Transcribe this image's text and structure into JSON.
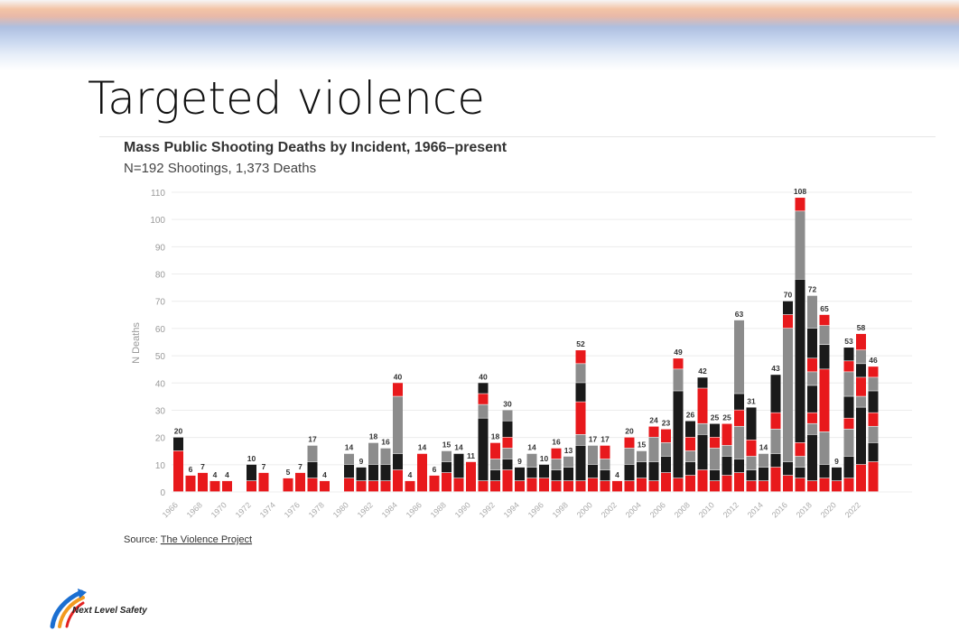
{
  "slide": {
    "title": "Targeted violence"
  },
  "logo": {
    "text": "Next Level Safety"
  },
  "chart_data": {
    "type": "bar",
    "stacked": true,
    "title": "Mass Public Shooting Deaths by Incident, 1966–present",
    "subtitle": "N=192 Shootings, 1,373 Deaths",
    "ylabel": "N Deaths",
    "ylim": [
      0,
      110
    ],
    "yticks": [
      0,
      10,
      20,
      30,
      40,
      50,
      60,
      70,
      80,
      90,
      100,
      110
    ],
    "source_prefix": "Source: ",
    "source_link": "The Violence Project",
    "grid": true,
    "colors": {
      "red": "#e8191c",
      "black": "#1a1a1a",
      "gray": "#8c8c8c"
    },
    "categories": [
      1966,
      1967,
      1968,
      1969,
      1970,
      1971,
      1972,
      1973,
      1974,
      1975,
      1976,
      1977,
      1978,
      1979,
      1980,
      1981,
      1982,
      1983,
      1984,
      1985,
      1986,
      1987,
      1988,
      1989,
      1990,
      1991,
      1992,
      1993,
      1994,
      1995,
      1996,
      1997,
      1998,
      1999,
      2000,
      2001,
      2002,
      2003,
      2004,
      2005,
      2006,
      2007,
      2008,
      2009,
      2010,
      2011,
      2012,
      2013,
      2014,
      2015,
      2016,
      2017,
      2018,
      2019,
      2020,
      2021,
      2022,
      2023
    ],
    "xtick_labels": [
      1966,
      1968,
      1970,
      1972,
      1974,
      1976,
      1978,
      1980,
      1982,
      1984,
      1986,
      1988,
      1990,
      1992,
      1994,
      1996,
      1998,
      2000,
      2002,
      2004,
      2006,
      2008,
      2010,
      2012,
      2014,
      2016,
      2018,
      2020,
      2022
    ],
    "totals": [
      20,
      6,
      7,
      4,
      4,
      null,
      10,
      7,
      null,
      5,
      7,
      17,
      4,
      null,
      14,
      9,
      18,
      16,
      40,
      4,
      14,
      6,
      15,
      14,
      11,
      40,
      18,
      30,
      9,
      14,
      10,
      16,
      13,
      52,
      17,
      17,
      4,
      20,
      15,
      24,
      23,
      49,
      26,
      42,
      25,
      25,
      63,
      31,
      14,
      43,
      70,
      108,
      72,
      65,
      9,
      53,
      58,
      46
    ],
    "segments": [
      [
        [
          "red",
          15
        ],
        [
          "black",
          5
        ]
      ],
      [
        [
          "red",
          6
        ]
      ],
      [
        [
          "red",
          7
        ]
      ],
      [
        [
          "red",
          4
        ]
      ],
      [
        [
          "red",
          4
        ]
      ],
      [],
      [
        [
          "red",
          4
        ],
        [
          "black",
          6
        ]
      ],
      [
        [
          "red",
          7
        ]
      ],
      [],
      [
        [
          "red",
          5
        ]
      ],
      [
        [
          "red",
          7
        ]
      ],
      [
        [
          "red",
          5
        ],
        [
          "black",
          6
        ],
        [
          "gray",
          6
        ]
      ],
      [
        [
          "red",
          4
        ]
      ],
      [],
      [
        [
          "red",
          5
        ],
        [
          "black",
          5
        ],
        [
          "gray",
          4
        ]
      ],
      [
        [
          "red",
          4
        ],
        [
          "black",
          5
        ]
      ],
      [
        [
          "red",
          4
        ],
        [
          "black",
          6
        ],
        [
          "gray",
          8
        ]
      ],
      [
        [
          "red",
          4
        ],
        [
          "black",
          6
        ],
        [
          "gray",
          6
        ]
      ],
      [
        [
          "red",
          8
        ],
        [
          "black",
          6
        ],
        [
          "gray",
          21
        ],
        [
          "red",
          5
        ]
      ],
      [
        [
          "red",
          4
        ]
      ],
      [
        [
          "red",
          14
        ]
      ],
      [
        [
          "red",
          6
        ]
      ],
      [
        [
          "red",
          7
        ],
        [
          "black",
          4
        ],
        [
          "gray",
          4
        ]
      ],
      [
        [
          "red",
          5
        ],
        [
          "black",
          9
        ]
      ],
      [
        [
          "red",
          11
        ]
      ],
      [
        [
          "red",
          4
        ],
        [
          "black",
          23
        ],
        [
          "gray",
          5
        ],
        [
          "red",
          4
        ],
        [
          "black",
          4
        ]
      ],
      [
        [
          "red",
          4
        ],
        [
          "black",
          4
        ],
        [
          "gray",
          4
        ],
        [
          "red",
          6
        ]
      ],
      [
        [
          "red",
          8
        ],
        [
          "black",
          4
        ],
        [
          "gray",
          4
        ],
        [
          "red",
          4
        ],
        [
          "black",
          6
        ],
        [
          "gray",
          4
        ]
      ],
      [
        [
          "red",
          4
        ],
        [
          "black",
          5
        ]
      ],
      [
        [
          "red",
          5
        ],
        [
          "black",
          4
        ],
        [
          "gray",
          5
        ]
      ],
      [
        [
          "red",
          5
        ],
        [
          "black",
          5
        ]
      ],
      [
        [
          "red",
          4
        ],
        [
          "black",
          4
        ],
        [
          "gray",
          4
        ],
        [
          "red",
          4
        ]
      ],
      [
        [
          "red",
          4
        ],
        [
          "black",
          5
        ],
        [
          "gray",
          4
        ]
      ],
      [
        [
          "red",
          4
        ],
        [
          "black",
          13
        ],
        [
          "gray",
          4
        ],
        [
          "red",
          12
        ],
        [
          "black",
          7
        ],
        [
          "gray",
          7
        ],
        [
          "red",
          5
        ]
      ],
      [
        [
          "red",
          5
        ],
        [
          "black",
          5
        ],
        [
          "gray",
          7
        ]
      ],
      [
        [
          "red",
          4
        ],
        [
          "black",
          4
        ],
        [
          "gray",
          4
        ],
        [
          "red",
          5
        ]
      ],
      [
        [
          "red",
          4
        ]
      ],
      [
        [
          "red",
          4
        ],
        [
          "black",
          6
        ],
        [
          "gray",
          6
        ],
        [
          "red",
          4
        ]
      ],
      [
        [
          "red",
          5
        ],
        [
          "black",
          6
        ],
        [
          "gray",
          4
        ]
      ],
      [
        [
          "red",
          4
        ],
        [
          "black",
          7
        ],
        [
          "gray",
          9
        ],
        [
          "red",
          4
        ]
      ],
      [
        [
          "red",
          7
        ],
        [
          "black",
          6
        ],
        [
          "gray",
          5
        ],
        [
          "red",
          5
        ]
      ],
      [
        [
          "red",
          5
        ],
        [
          "black",
          32
        ],
        [
          "gray",
          8
        ],
        [
          "red",
          4
        ]
      ],
      [
        [
          "red",
          6
        ],
        [
          "black",
          5
        ],
        [
          "gray",
          4
        ],
        [
          "red",
          5
        ],
        [
          "black",
          6
        ]
      ],
      [
        [
          "red",
          8
        ],
        [
          "black",
          13
        ],
        [
          "gray",
          4
        ],
        [
          "red",
          13
        ],
        [
          "black",
          4
        ]
      ],
      [
        [
          "red",
          4
        ],
        [
          "black",
          4
        ],
        [
          "gray",
          8
        ],
        [
          "red",
          4
        ],
        [
          "black",
          5
        ]
      ],
      [
        [
          "red",
          6
        ],
        [
          "black",
          7
        ],
        [
          "gray",
          4
        ],
        [
          "red",
          8
        ]
      ],
      [
        [
          "red",
          7
        ],
        [
          "black",
          5
        ],
        [
          "gray",
          12
        ],
        [
          "red",
          6
        ],
        [
          "black",
          6
        ],
        [
          "gray",
          27
        ]
      ],
      [
        [
          "red",
          4
        ],
        [
          "black",
          4
        ],
        [
          "gray",
          5
        ],
        [
          "red",
          6
        ],
        [
          "black",
          12
        ]
      ],
      [
        [
          "red",
          4
        ],
        [
          "black",
          5
        ],
        [
          "gray",
          5
        ]
      ],
      [
        [
          "red",
          9
        ],
        [
          "black",
          5
        ],
        [
          "gray",
          9
        ],
        [
          "red",
          6
        ],
        [
          "black",
          14
        ]
      ],
      [
        [
          "red",
          6
        ],
        [
          "black",
          5
        ],
        [
          "gray",
          49
        ],
        [
          "red",
          5
        ],
        [
          "black",
          5
        ]
      ],
      [
        [
          "red",
          5
        ],
        [
          "black",
          4
        ],
        [
          "gray",
          4
        ],
        [
          "red",
          5
        ],
        [
          "black",
          60
        ],
        [
          "gray",
          25
        ],
        [
          "red",
          5
        ]
      ],
      [
        [
          "red",
          4
        ],
        [
          "black",
          17
        ],
        [
          "gray",
          4
        ],
        [
          "red",
          4
        ],
        [
          "black",
          10
        ],
        [
          "gray",
          5
        ],
        [
          "red",
          5
        ],
        [
          "black",
          11
        ],
        [
          "gray",
          12
        ]
      ],
      [
        [
          "red",
          5
        ],
        [
          "black",
          5
        ],
        [
          "gray",
          12
        ],
        [
          "red",
          23
        ],
        [
          "black",
          9
        ],
        [
          "gray",
          7
        ],
        [
          "red",
          4
        ]
      ],
      [
        [
          "red",
          4
        ],
        [
          "black",
          5
        ]
      ],
      [
        [
          "red",
          5
        ],
        [
          "black",
          8
        ],
        [
          "gray",
          10
        ],
        [
          "red",
          4
        ],
        [
          "black",
          8
        ],
        [
          "gray",
          9
        ],
        [
          "red",
          4
        ],
        [
          "black",
          5
        ]
      ],
      [
        [
          "red",
          10
        ],
        [
          "black",
          21
        ],
        [
          "gray",
          4
        ],
        [
          "red",
          7
        ],
        [
          "black",
          5
        ],
        [
          "gray",
          5
        ],
        [
          "red",
          6
        ]
      ],
      [
        [
          "red",
          11
        ],
        [
          "black",
          7
        ],
        [
          "gray",
          6
        ],
        [
          "red",
          5
        ],
        [
          "black",
          8
        ],
        [
          "gray",
          5
        ],
        [
          "red",
          4
        ]
      ]
    ]
  }
}
